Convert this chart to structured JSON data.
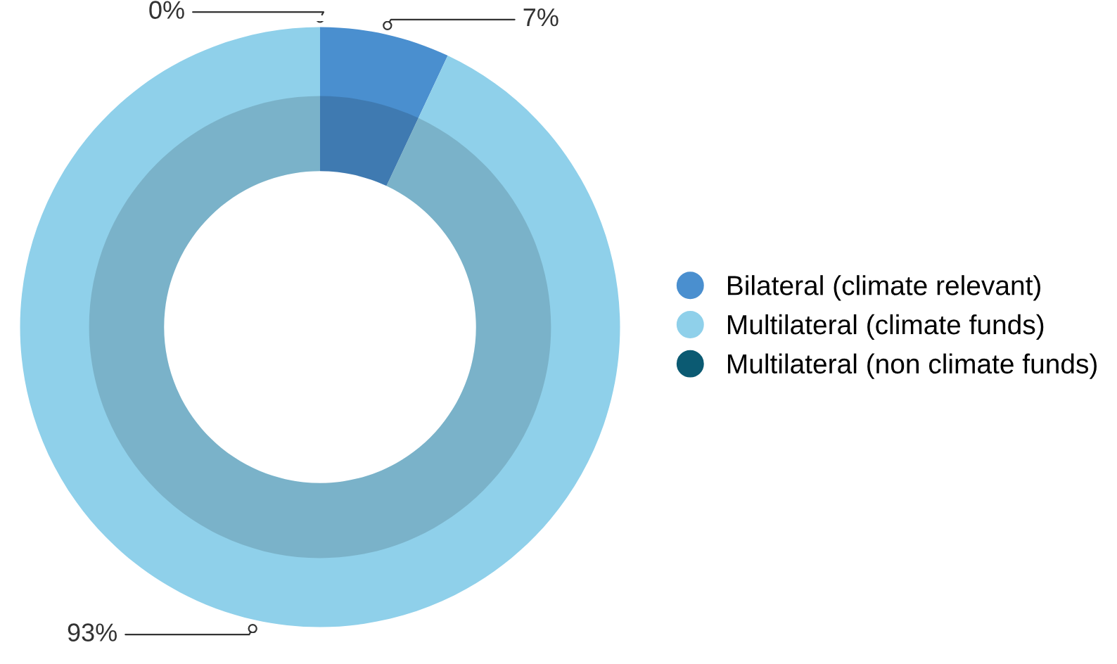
{
  "chart_data": {
    "type": "donut",
    "categories": [
      "Bilateral (climate relevant)",
      "Multilateral (climate funds)",
      "Multilateral (non climate funds)"
    ],
    "values": [
      7,
      93,
      0
    ],
    "colors": [
      "#4a8fcf",
      "#8fd0ea",
      "#0b5a72"
    ],
    "value_labels": [
      "7%",
      "93%",
      "0%"
    ],
    "legend": "right"
  }
}
